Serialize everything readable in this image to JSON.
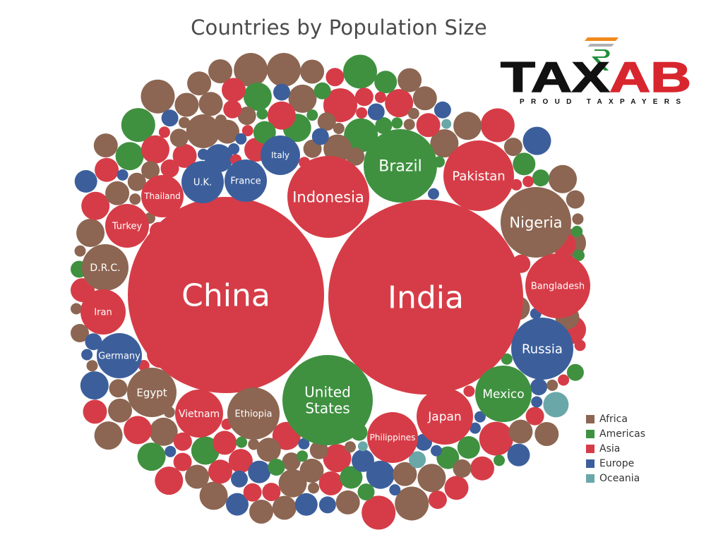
{
  "colors": {
    "Africa": "#8c6652",
    "Americas": "#3f9140",
    "Asia": "#d63c47",
    "Europe": "#3c5f9c",
    "Oceania": "#6aa7a9"
  },
  "logo": {
    "text": "TAXAB",
    "tagline": "PROUD TAXPAYERS",
    "icon": "rupee-symbol-icon"
  },
  "chart_data": {
    "type": "bubble",
    "title": "Countries by Population Size",
    "size_encoding": "population",
    "color_encoding": "continent",
    "legend": {
      "placement": "bottom-right",
      "entries": [
        "Africa",
        "Americas",
        "Asia",
        "Europe",
        "Oceania"
      ]
    },
    "labeled_points": [
      {
        "label": "China",
        "region": "Asia",
        "r": 139
      },
      {
        "label": "India",
        "region": "Asia",
        "r": 138
      },
      {
        "label": "United States",
        "region": "Americas",
        "r": 64
      },
      {
        "label": "Indonesia",
        "region": "Asia",
        "r": 58
      },
      {
        "label": "Brazil",
        "region": "Americas",
        "r": 52
      },
      {
        "label": "Pakistan",
        "region": "Asia",
        "r": 50
      },
      {
        "label": "Nigeria",
        "region": "Africa",
        "r": 50
      },
      {
        "label": "Bangladesh",
        "region": "Asia",
        "r": 46
      },
      {
        "label": "Russia",
        "region": "Europe",
        "r": 44
      },
      {
        "label": "Mexico",
        "region": "Americas",
        "r": 40
      },
      {
        "label": "Japan",
        "region": "Asia",
        "r": 40
      },
      {
        "label": "Ethiopia",
        "region": "Africa",
        "r": 37
      },
      {
        "label": "Philippines",
        "region": "Asia",
        "r": 36
      },
      {
        "label": "Egypt",
        "region": "Africa",
        "r": 35
      },
      {
        "label": "Vietnam",
        "region": "Asia",
        "r": 34
      },
      {
        "label": "D.R.C.",
        "region": "Africa",
        "r": 33
      },
      {
        "label": "Germany",
        "region": "Europe",
        "r": 32
      },
      {
        "label": "Iran",
        "region": "Asia",
        "r": 32
      },
      {
        "label": "Turkey",
        "region": "Asia",
        "r": 31
      },
      {
        "label": "Thailand",
        "region": "Asia",
        "r": 30
      },
      {
        "label": "France",
        "region": "Europe",
        "r": 30
      },
      {
        "label": "U.K.",
        "region": "Europe",
        "r": 30
      },
      {
        "label": "Italy",
        "region": "Europe",
        "r": 28
      }
    ],
    "unlabeled_points": [
      [
        "Africa",
        24,
        5
      ],
      [
        "Africa",
        20,
        12
      ],
      [
        "Africa",
        17,
        22
      ],
      [
        "Africa",
        13,
        14
      ],
      [
        "Africa",
        8,
        16
      ],
      [
        "Americas",
        24,
        3
      ],
      [
        "Americas",
        20,
        5
      ],
      [
        "Americas",
        16,
        6
      ],
      [
        "Americas",
        12,
        8
      ],
      [
        "Americas",
        8,
        10
      ],
      [
        "Asia",
        24,
        4
      ],
      [
        "Asia",
        20,
        10
      ],
      [
        "Asia",
        17,
        14
      ],
      [
        "Asia",
        13,
        12
      ],
      [
        "Asia",
        8,
        14
      ],
      [
        "Europe",
        20,
        4
      ],
      [
        "Europe",
        16,
        6
      ],
      [
        "Europe",
        12,
        10
      ],
      [
        "Europe",
        8,
        14
      ],
      [
        "Oceania",
        18,
        1
      ],
      [
        "Oceania",
        12,
        1
      ],
      [
        "Oceania",
        7,
        2
      ]
    ]
  }
}
